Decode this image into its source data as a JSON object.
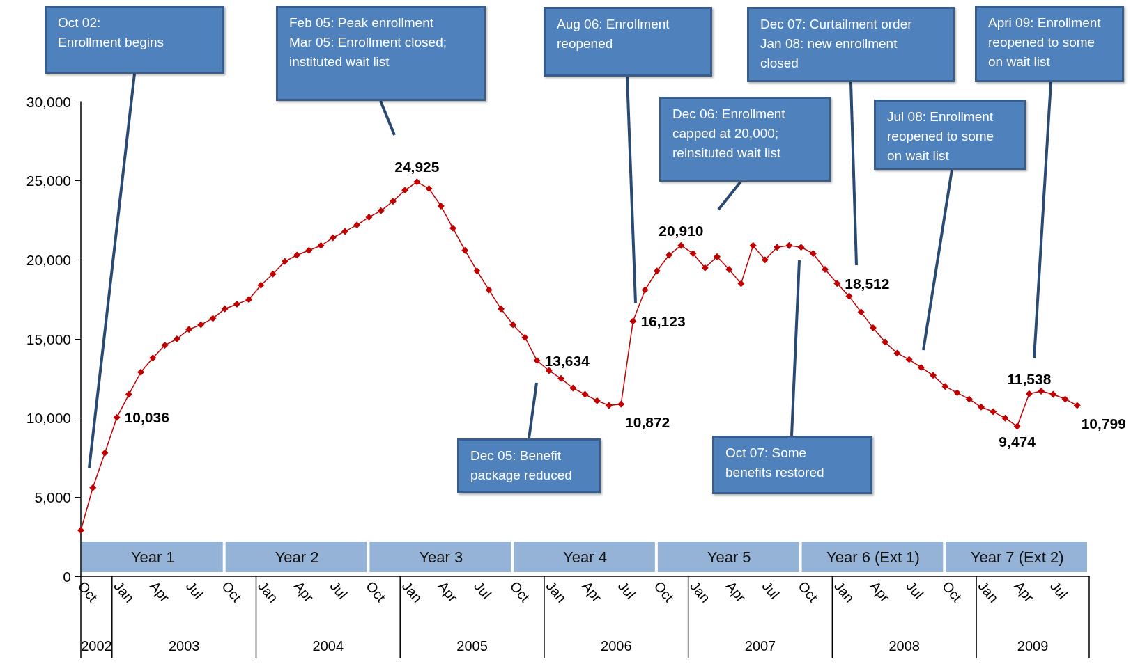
{
  "chart_data": {
    "type": "line",
    "color": "#c00000",
    "marker": "diamond",
    "grid": false,
    "ylim": [
      0,
      30000
    ],
    "yticks": [
      {
        "value": 0,
        "label": "0"
      },
      {
        "value": 5000,
        "label": "5,000"
      },
      {
        "value": 10000,
        "label": "10,000"
      },
      {
        "value": 15000,
        "label": "15,000"
      },
      {
        "value": 20000,
        "label": "20,000"
      },
      {
        "value": 25000,
        "label": "25,000"
      },
      {
        "value": 30000,
        "label": "30,000"
      }
    ],
    "xlim": [
      "2002-10",
      "2009-10"
    ],
    "xticks": [
      {
        "value": "2002-10",
        "label": "Oct"
      },
      {
        "value": "2003-01",
        "label": "Jan"
      },
      {
        "value": "2003-04",
        "label": "Apr"
      },
      {
        "value": "2003-07",
        "label": "Jul"
      },
      {
        "value": "2003-10",
        "label": "Oct"
      },
      {
        "value": "2004-01",
        "label": "Jan"
      },
      {
        "value": "2004-04",
        "label": "Apr"
      },
      {
        "value": "2004-07",
        "label": "Jul"
      },
      {
        "value": "2004-10",
        "label": "Oct"
      },
      {
        "value": "2005-01",
        "label": "Jan"
      },
      {
        "value": "2005-04",
        "label": "Apr"
      },
      {
        "value": "2005-07",
        "label": "Jul"
      },
      {
        "value": "2005-10",
        "label": "Oct"
      },
      {
        "value": "2006-01",
        "label": "Jan"
      },
      {
        "value": "2006-04",
        "label": "Apr"
      },
      {
        "value": "2006-07",
        "label": "Jul"
      },
      {
        "value": "2006-10",
        "label": "Oct"
      },
      {
        "value": "2007-01",
        "label": "Jan"
      },
      {
        "value": "2007-04",
        "label": "Apr"
      },
      {
        "value": "2007-07",
        "label": "Jul"
      },
      {
        "value": "2007-10",
        "label": "Oct"
      },
      {
        "value": "2008-01",
        "label": "Jan"
      },
      {
        "value": "2008-04",
        "label": "Apr"
      },
      {
        "value": "2008-07",
        "label": "Jul"
      },
      {
        "value": "2008-10",
        "label": "Oct"
      },
      {
        "value": "2009-01",
        "label": "Jan"
      },
      {
        "value": "2009-04",
        "label": "Apr"
      },
      {
        "value": "2009-07",
        "label": "Jul"
      }
    ],
    "x": [
      "2002-10",
      "2002-11",
      "2002-12",
      "2003-01",
      "2003-02",
      "2003-03",
      "2003-04",
      "2003-05",
      "2003-06",
      "2003-07",
      "2003-08",
      "2003-09",
      "2003-10",
      "2003-11",
      "2003-12",
      "2004-01",
      "2004-02",
      "2004-03",
      "2004-04",
      "2004-05",
      "2004-06",
      "2004-07",
      "2004-08",
      "2004-09",
      "2004-10",
      "2004-11",
      "2004-12",
      "2005-01",
      "2005-02",
      "2005-03",
      "2005-04",
      "2005-05",
      "2005-06",
      "2005-07",
      "2005-08",
      "2005-09",
      "2005-10",
      "2005-11",
      "2005-12",
      "2006-01",
      "2006-02",
      "2006-03",
      "2006-04",
      "2006-05",
      "2006-06",
      "2006-07",
      "2006-08",
      "2006-09",
      "2006-10",
      "2006-11",
      "2006-12",
      "2007-01",
      "2007-02",
      "2007-03",
      "2007-04",
      "2007-05",
      "2007-06",
      "2007-07",
      "2007-08",
      "2007-09",
      "2007-10",
      "2007-11",
      "2007-12",
      "2008-01",
      "2008-02",
      "2008-03",
      "2008-04",
      "2008-05",
      "2008-06",
      "2008-07",
      "2008-08",
      "2008-09",
      "2008-10",
      "2008-11",
      "2008-12",
      "2009-01",
      "2009-02",
      "2009-03",
      "2009-04",
      "2009-05",
      "2009-06",
      "2009-07",
      "2009-08",
      "2009-09"
    ],
    "values": [
      2900,
      5600,
      7800,
      10036,
      11500,
      12900,
      13800,
      14600,
      15000,
      15600,
      15900,
      16300,
      16900,
      17200,
      17500,
      18400,
      19100,
      19900,
      20300,
      20600,
      20900,
      21400,
      21800,
      22200,
      22700,
      23100,
      23700,
      24400,
      24925,
      24500,
      23400,
      22000,
      20600,
      19300,
      18100,
      16900,
      15900,
      15100,
      13634,
      13000,
      12500,
      11900,
      11500,
      11100,
      10800,
      10872,
      16123,
      18100,
      19300,
      20300,
      20910,
      20400,
      19500,
      20200,
      19400,
      18500,
      20900,
      20000,
      20800,
      20900,
      20800,
      20400,
      19400,
      18512,
      17700,
      16700,
      15700,
      14800,
      14100,
      13700,
      13200,
      12700,
      12000,
      11600,
      11200,
      10700,
      10400,
      10000,
      9474,
      11538,
      11700,
      11500,
      11200,
      10799
    ],
    "value_labels": [
      null,
      null,
      null,
      "10,036",
      null,
      null,
      null,
      null,
      null,
      null,
      null,
      null,
      null,
      null,
      null,
      null,
      null,
      null,
      null,
      null,
      null,
      null,
      null,
      null,
      null,
      null,
      null,
      null,
      "24,925",
      null,
      null,
      null,
      null,
      null,
      null,
      null,
      null,
      null,
      "13,634",
      null,
      null,
      null,
      null,
      null,
      null,
      "10,872",
      "16,123",
      null,
      null,
      null,
      "20,910",
      null,
      null,
      null,
      null,
      null,
      null,
      null,
      null,
      null,
      null,
      null,
      null,
      "18,512",
      null,
      null,
      null,
      null,
      null,
      null,
      null,
      null,
      null,
      null,
      null,
      null,
      null,
      null,
      "9,474",
      "11,538",
      null,
      null,
      null,
      "10,799"
    ],
    "bands": [
      {
        "axis": "x",
        "from": "2002-10",
        "to": "2003-10",
        "label": "Year 1",
        "color": "#95b3d7"
      },
      {
        "axis": "x",
        "from": "2003-10",
        "to": "2004-10",
        "label": "Year 2",
        "color": "#95b3d7"
      },
      {
        "axis": "x",
        "from": "2004-10",
        "to": "2005-10",
        "label": "Year 3",
        "color": "#95b3d7"
      },
      {
        "axis": "x",
        "from": "2005-10",
        "to": "2006-10",
        "label": "Year 4",
        "color": "#95b3d7"
      },
      {
        "axis": "x",
        "from": "2006-10",
        "to": "2007-10",
        "label": "Year 5",
        "color": "#95b3d7"
      },
      {
        "axis": "x",
        "from": "2007-10",
        "to": "2008-10",
        "label": "Year 6 (Ext 1)",
        "color": "#95b3d7"
      },
      {
        "axis": "x",
        "from": "2008-10",
        "to": "2009-10",
        "label": "Year 7 (Ext 2)",
        "color": "#95b3d7"
      }
    ],
    "annotations": [
      "2002",
      "2003",
      "2004",
      "2005",
      "2006",
      "2007",
      "2008",
      "2009",
      "Oct 02:\nEnrollment begins",
      "Feb 05: Peak enrollment\nMar 05: Enrollment closed;\ninstituted wait list",
      "Aug 06: Enrollment\nreopened",
      "Dec 07: Curtailment order\nJan 08: new enrollment\nclosed",
      "Apri 09: Enrollment\nreopened to some\non wait list",
      "Dec 06: Enrollment\ncapped at 20,000;\nreinsituted wait list",
      "Jul 08: Enrollment\nreopened to some\non wait list",
      "Dec 05: Benefit\npackage reduced",
      "Oct 07: Some\nbenefits restored"
    ]
  }
}
